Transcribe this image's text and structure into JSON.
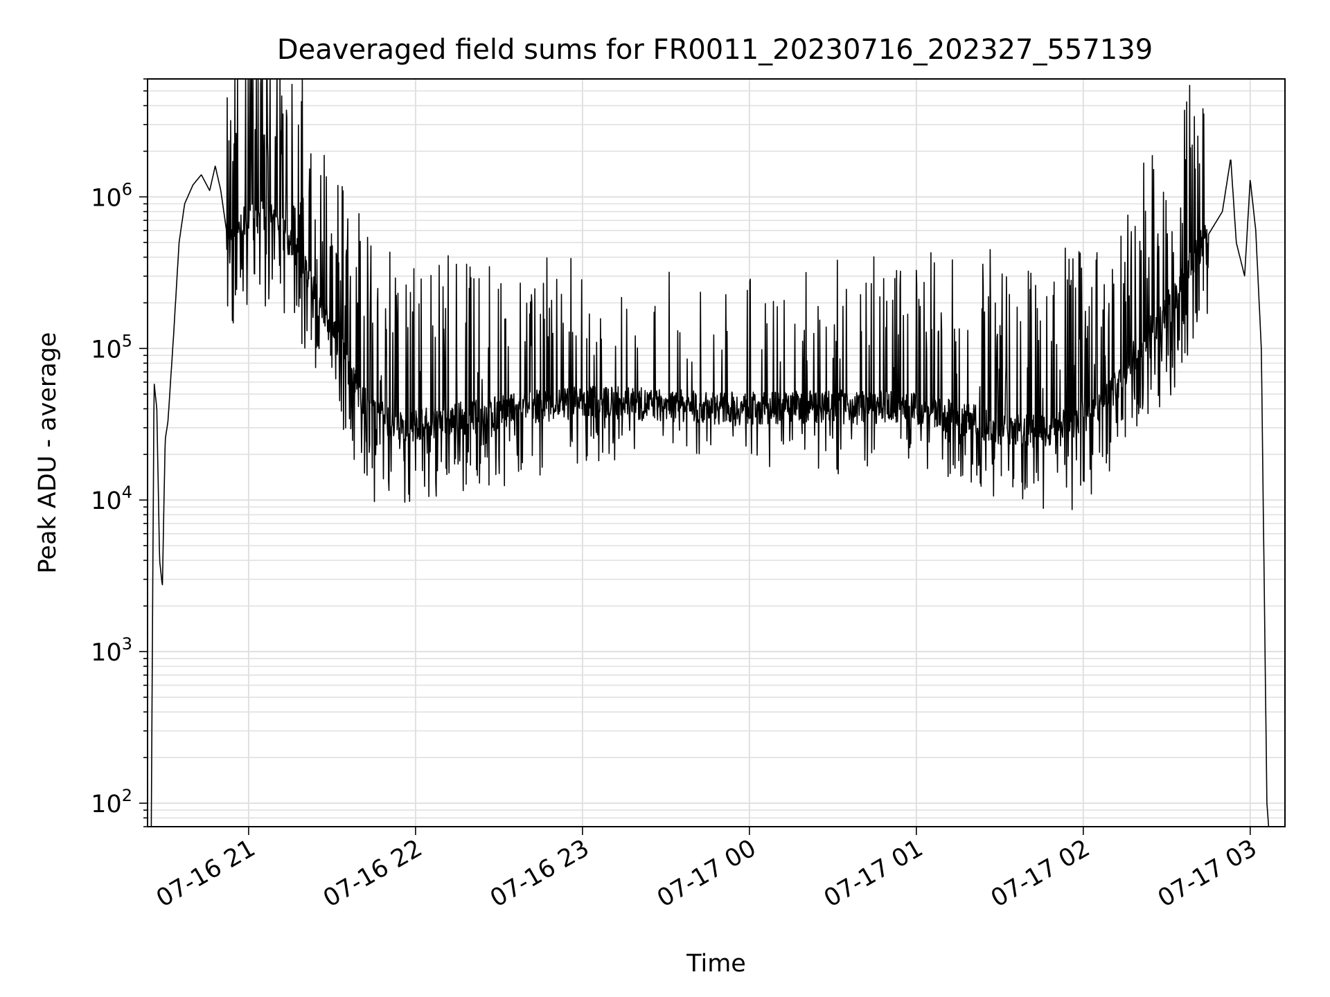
{
  "chart_data": {
    "type": "line",
    "title": "Deaveraged field sums for FR0011_20230716_202327_557139",
    "xlabel": "Time",
    "ylabel": "Peak ADU - average",
    "y_scale": "log",
    "ylim": [
      70,
      6000000
    ],
    "xlim": [
      "2023-07-16 20:23:40",
      "2023-07-17 03:12:30"
    ],
    "x_ticks": [
      "07-16 21",
      "07-16 22",
      "07-16 23",
      "07-17 00",
      "07-17 01",
      "07-17 02",
      "07-17 03"
    ],
    "x_tick_values": [
      "2023-07-16 21:00",
      "2023-07-16 22:00",
      "2023-07-16 23:00",
      "2023-07-17 00:00",
      "2023-07-17 01:00",
      "2023-07-17 02:00",
      "2023-07-17 03:00"
    ],
    "y_ticks": [
      {
        "base": "10",
        "exp": "2",
        "value": 100
      },
      {
        "base": "10",
        "exp": "3",
        "value": 1000
      },
      {
        "base": "10",
        "exp": "4",
        "value": 10000
      },
      {
        "base": "10",
        "exp": "5",
        "value": 100000
      },
      {
        "base": "10",
        "exp": "6",
        "value": 1000000
      }
    ],
    "grid": true,
    "line_color": "#000000",
    "grid_color": "#e0e0e0",
    "series": [
      {
        "points": [
          [
            "2023-07-16 20:25",
            70
          ],
          [
            "2023-07-16 20:26",
            60000
          ],
          [
            "2023-07-16 20:27",
            40000
          ],
          [
            "2023-07-16 20:28",
            4000
          ],
          [
            "2023-07-16 20:29",
            2700
          ],
          [
            "2023-07-16 20:30",
            25000
          ],
          [
            "2023-07-16 20:31",
            33000
          ],
          [
            "2023-07-16 20:33",
            120000
          ],
          [
            "2023-07-16 20:35",
            500000
          ],
          [
            "2023-07-16 20:37",
            900000
          ],
          [
            "2023-07-16 20:40",
            1200000
          ],
          [
            "2023-07-16 20:43",
            1400000
          ],
          [
            "2023-07-16 20:46",
            1100000
          ],
          [
            "2023-07-16 20:48",
            1600000
          ],
          [
            "2023-07-16 20:50",
            1100000
          ],
          [
            "2023-07-16 20:53",
            450000
          ],
          [
            "2023-07-16 20:58",
            700000
          ],
          [
            "2023-07-16 21:05",
            800000
          ],
          [
            "2023-07-16 21:10",
            650000
          ],
          [
            "2023-07-16 21:15",
            500000
          ],
          [
            "2023-07-16 21:20",
            350000
          ],
          [
            "2023-07-16 21:25",
            200000
          ],
          [
            "2023-07-16 21:30",
            130000
          ],
          [
            "2023-07-16 21:35",
            80000
          ],
          [
            "2023-07-16 21:40",
            50000
          ],
          [
            "2023-07-16 21:45",
            38000
          ],
          [
            "2023-07-16 21:55",
            30000
          ],
          [
            "2023-07-16 22:10",
            33000
          ],
          [
            "2023-07-16 22:30",
            38000
          ],
          [
            "2023-07-16 22:45",
            42000
          ],
          [
            "2023-07-16 23:00",
            45000
          ],
          [
            "2023-07-16 23:30",
            42000
          ],
          [
            "2023-07-17 00:00",
            40000
          ],
          [
            "2023-07-17 00:30",
            42000
          ],
          [
            "2023-07-17 01:00",
            40000
          ],
          [
            "2023-07-17 01:15",
            35000
          ],
          [
            "2023-07-17 01:30",
            30000
          ],
          [
            "2023-07-17 01:45",
            28000
          ],
          [
            "2023-07-17 02:00",
            35000
          ],
          [
            "2023-07-17 02:10",
            50000
          ],
          [
            "2023-07-17 02:20",
            100000
          ],
          [
            "2023-07-17 02:30",
            180000
          ],
          [
            "2023-07-17 02:40",
            400000
          ],
          [
            "2023-07-17 02:50",
            800000
          ],
          [
            "2023-07-17 02:53",
            1800000
          ],
          [
            "2023-07-17 02:55",
            500000
          ],
          [
            "2023-07-17 02:58",
            300000
          ],
          [
            "2023-07-17 03:00",
            1300000
          ],
          [
            "2023-07-17 03:02",
            600000
          ],
          [
            "2023-07-17 03:04",
            100000
          ],
          [
            "2023-07-17 03:06",
            100
          ]
        ]
      }
    ]
  }
}
